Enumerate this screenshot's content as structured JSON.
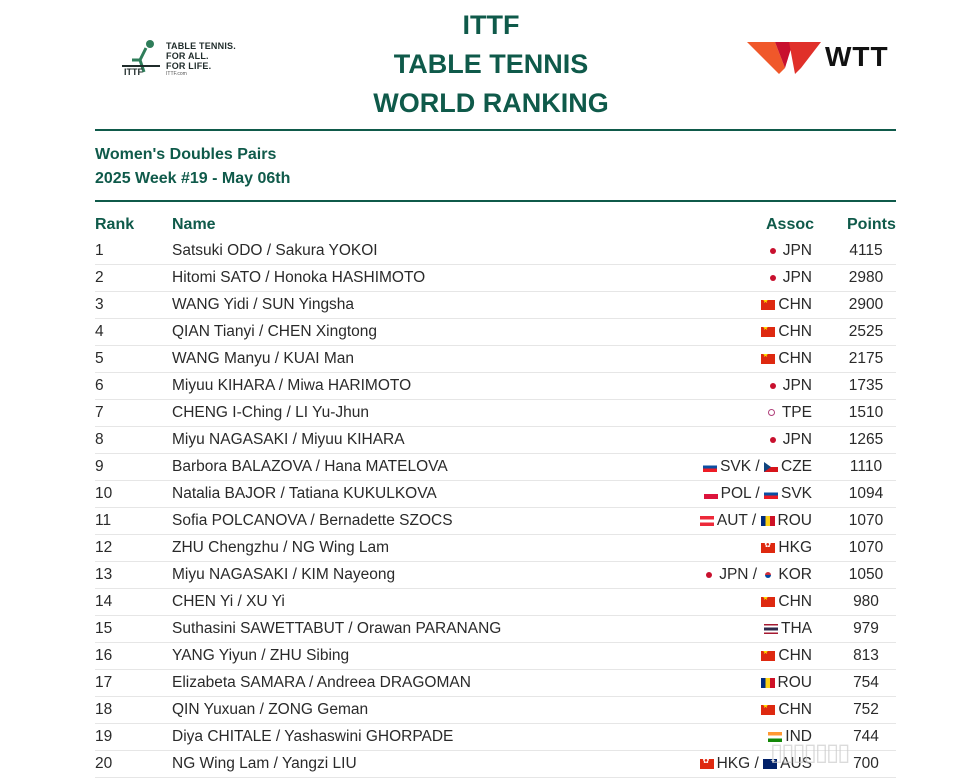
{
  "header": {
    "ittf_logo": {
      "line1": "TABLE TENNIS.",
      "line2": "FOR ALL.",
      "line3": "FOR LIFE.",
      "site": "ITTF.com",
      "mark_text": "ITTF"
    },
    "title_line1": "ITTF",
    "title_line2": "TABLE TENNIS",
    "title_line3": "WORLD RANKING",
    "wtt_logo_text": "WTT"
  },
  "subtitle": {
    "category": "Women's Doubles Pairs",
    "week": "2025 Week #19 - May 06th"
  },
  "table": {
    "columns": {
      "rank": "Rank",
      "name": "Name",
      "assoc": "Assoc",
      "points": "Points"
    },
    "rows": [
      {
        "rank": "1",
        "name": "Satsuki ODO / Sakura YOKOI",
        "assoc": [
          {
            "flag": "jpn",
            "code": "JPN"
          }
        ],
        "points": "4115"
      },
      {
        "rank": "2",
        "name": "Hitomi SATO / Honoka HASHIMOTO",
        "assoc": [
          {
            "flag": "jpn",
            "code": "JPN"
          }
        ],
        "points": "2980"
      },
      {
        "rank": "3",
        "name": "WANG Yidi / SUN Yingsha",
        "assoc": [
          {
            "flag": "chn",
            "code": "CHN"
          }
        ],
        "points": "2900"
      },
      {
        "rank": "4",
        "name": "QIAN Tianyi / CHEN Xingtong",
        "assoc": [
          {
            "flag": "chn",
            "code": "CHN"
          }
        ],
        "points": "2525"
      },
      {
        "rank": "5",
        "name": "WANG Manyu / KUAI Man",
        "assoc": [
          {
            "flag": "chn",
            "code": "CHN"
          }
        ],
        "points": "2175"
      },
      {
        "rank": "6",
        "name": "Miyuu KIHARA / Miwa HARIMOTO",
        "assoc": [
          {
            "flag": "jpn",
            "code": "JPN"
          }
        ],
        "points": "1735"
      },
      {
        "rank": "7",
        "name": "CHENG I-Ching / LI Yu-Jhun",
        "assoc": [
          {
            "flag": "tpe",
            "code": "TPE"
          }
        ],
        "points": "1510"
      },
      {
        "rank": "8",
        "name": "Miyu NAGASAKI / Miyuu KIHARA",
        "assoc": [
          {
            "flag": "jpn",
            "code": "JPN"
          }
        ],
        "points": "1265"
      },
      {
        "rank": "9",
        "name": "Barbora BALAZOVA / Hana MATELOVA",
        "assoc": [
          {
            "flag": "svk",
            "code": "SVK"
          },
          {
            "flag": "cze",
            "code": "CZE"
          }
        ],
        "points": "1110"
      },
      {
        "rank": "10",
        "name": "Natalia BAJOR / Tatiana KUKULKOVA",
        "assoc": [
          {
            "flag": "pol",
            "code": "POL"
          },
          {
            "flag": "svk",
            "code": "SVK"
          }
        ],
        "points": "1094"
      },
      {
        "rank": "11",
        "name": "Sofia POLCANOVA / Bernadette SZOCS",
        "assoc": [
          {
            "flag": "aut",
            "code": "AUT"
          },
          {
            "flag": "rou",
            "code": "ROU"
          }
        ],
        "points": "1070"
      },
      {
        "rank": "12",
        "name": "ZHU Chengzhu / NG Wing Lam",
        "assoc": [
          {
            "flag": "hkg",
            "code": "HKG"
          }
        ],
        "points": "1070"
      },
      {
        "rank": "13",
        "name": "Miyu NAGASAKI / KIM Nayeong",
        "assoc": [
          {
            "flag": "jpn",
            "code": "JPN"
          },
          {
            "flag": "kor",
            "code": "KOR"
          }
        ],
        "points": "1050"
      },
      {
        "rank": "14",
        "name": "CHEN Yi / XU Yi",
        "assoc": [
          {
            "flag": "chn",
            "code": "CHN"
          }
        ],
        "points": "980"
      },
      {
        "rank": "15",
        "name": "Suthasini SAWETTABUT / Orawan PARANANG",
        "assoc": [
          {
            "flag": "tha",
            "code": "THA"
          }
        ],
        "points": "979"
      },
      {
        "rank": "16",
        "name": "YANG Yiyun / ZHU Sibing",
        "assoc": [
          {
            "flag": "chn",
            "code": "CHN"
          }
        ],
        "points": "813"
      },
      {
        "rank": "17",
        "name": "Elizabeta SAMARA / Andreea DRAGOMAN",
        "assoc": [
          {
            "flag": "rou",
            "code": "ROU"
          }
        ],
        "points": "754"
      },
      {
        "rank": "18",
        "name": "QIN Yuxuan / ZONG Geman",
        "assoc": [
          {
            "flag": "chn",
            "code": "CHN"
          }
        ],
        "points": "752"
      },
      {
        "rank": "19",
        "name": "Diya CHITALE / Yashaswini GHORPADE",
        "assoc": [
          {
            "flag": "ind",
            "code": "IND"
          }
        ],
        "points": "744"
      },
      {
        "rank": "20",
        "name": "NG Wing Lam / Yangzi LIU",
        "assoc": [
          {
            "flag": "hkg",
            "code": "HKG"
          },
          {
            "flag": "aus",
            "code": "AUS"
          }
        ],
        "points": "700"
      }
    ]
  },
  "colors": {
    "accent": "#0f5a4a",
    "wtt_orange": "#f0582a",
    "wtt_red": "#c8102e"
  }
}
